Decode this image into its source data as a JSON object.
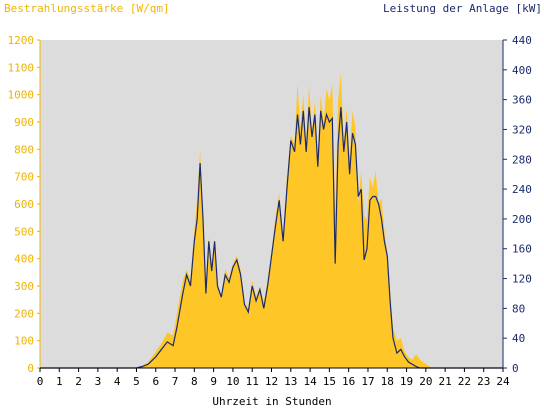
{
  "chart_data": {
    "type": "area",
    "left_axis_label": "Bestrahlungsstärke [W/qm]",
    "right_axis_label": "Leistung der Anlage [kW]",
    "xlabel": "Uhrzeit in Stunden",
    "x_range": [
      0,
      24
    ],
    "x_ticks": [
      "0",
      "1",
      "2",
      "3",
      "4",
      "5",
      "6",
      "7",
      "8",
      "9",
      "10",
      "11",
      "12",
      "13",
      "14",
      "15",
      "16",
      "17",
      "18",
      "19",
      "20",
      "21",
      "22",
      "23",
      "24"
    ],
    "left_ylim": [
      0,
      1200
    ],
    "left_ticks": [
      "0",
      "100",
      "200",
      "300",
      "400",
      "500",
      "600",
      "700",
      "800",
      "900",
      "1000",
      "1100",
      "1200"
    ],
    "right_ylim": [
      0,
      440
    ],
    "right_ticks": [
      "0",
      "40",
      "80",
      "120",
      "160",
      "200",
      "240",
      "280",
      "320",
      "360",
      "400",
      "440"
    ],
    "grid": false,
    "colors": {
      "irradiance": "#ffc628",
      "power": "#1a2a6c",
      "plot_bg": "#dcdcdc",
      "left_axis": "#f0b400"
    },
    "series": [
      {
        "role": "irradiance",
        "axis": "left",
        "x": [
          0,
          5,
          5.3,
          5.6,
          6.0,
          6.3,
          6.6,
          6.9,
          7.1,
          7.4,
          7.6,
          7.8,
          8.0,
          8.15,
          8.3,
          8.45,
          8.6,
          8.75,
          8.9,
          9.05,
          9.2,
          9.4,
          9.6,
          9.8,
          10.0,
          10.2,
          10.4,
          10.6,
          10.8,
          11.0,
          11.2,
          11.4,
          11.6,
          11.8,
          12.0,
          12.2,
          12.4,
          12.6,
          12.8,
          13.0,
          13.2,
          13.35,
          13.5,
          13.65,
          13.8,
          13.95,
          14.1,
          14.25,
          14.4,
          14.55,
          14.7,
          14.85,
          15.0,
          15.15,
          15.3,
          15.45,
          15.6,
          15.75,
          15.9,
          16.05,
          16.2,
          16.35,
          16.5,
          16.65,
          16.8,
          16.95,
          17.1,
          17.25,
          17.4,
          17.55,
          17.7,
          17.85,
          18.0,
          18.15,
          18.3,
          18.5,
          18.7,
          18.9,
          19.1,
          19.3,
          19.5,
          19.7,
          19.9,
          20.1,
          20.3,
          20.5,
          21,
          24
        ],
        "y": [
          0,
          0,
          10,
          20,
          60,
          90,
          130,
          120,
          200,
          320,
          360,
          320,
          500,
          620,
          800,
          550,
          300,
          480,
          380,
          470,
          300,
          260,
          360,
          330,
          380,
          410,
          360,
          240,
          220,
          320,
          260,
          300,
          240,
          320,
          420,
          550,
          640,
          480,
          700,
          850,
          820,
          1040,
          880,
          1000,
          820,
          1040,
          860,
          980,
          760,
          1000,
          900,
          1020,
          980,
          1040,
          560,
          980,
          1080,
          820,
          950,
          760,
          940,
          880,
          600,
          720,
          560,
          540,
          700,
          660,
          720,
          600,
          620,
          500,
          420,
          280,
          150,
          100,
          110,
          60,
          40,
          30,
          50,
          30,
          20,
          10,
          0,
          0,
          0,
          0
        ]
      },
      {
        "role": "power",
        "axis": "right",
        "x": [
          0,
          5,
          5.3,
          5.6,
          6.0,
          6.3,
          6.6,
          6.9,
          7.1,
          7.4,
          7.6,
          7.8,
          8.0,
          8.15,
          8.3,
          8.45,
          8.6,
          8.75,
          8.9,
          9.05,
          9.2,
          9.4,
          9.6,
          9.8,
          10.0,
          10.2,
          10.4,
          10.6,
          10.8,
          11.0,
          11.2,
          11.4,
          11.6,
          11.8,
          12.0,
          12.2,
          12.4,
          12.6,
          12.8,
          13.0,
          13.2,
          13.35,
          13.5,
          13.65,
          13.8,
          13.95,
          14.1,
          14.25,
          14.4,
          14.55,
          14.7,
          14.85,
          15.0,
          15.15,
          15.3,
          15.45,
          15.6,
          15.75,
          15.9,
          16.05,
          16.2,
          16.35,
          16.5,
          16.65,
          16.8,
          16.95,
          17.1,
          17.25,
          17.4,
          17.55,
          17.7,
          17.85,
          18.0,
          18.15,
          18.3,
          18.5,
          18.7,
          18.9,
          19.1,
          19.3,
          19.5,
          19.7,
          19.9,
          20.1,
          20.3,
          20.5,
          21,
          24
        ],
        "y": [
          0,
          0,
          2,
          5,
          15,
          25,
          35,
          30,
          55,
          100,
          125,
          110,
          170,
          200,
          275,
          200,
          100,
          170,
          130,
          170,
          110,
          95,
          125,
          115,
          135,
          145,
          125,
          85,
          75,
          110,
          90,
          105,
          80,
          110,
          150,
          190,
          225,
          170,
          240,
          305,
          290,
          340,
          300,
          345,
          290,
          350,
          310,
          340,
          270,
          345,
          320,
          340,
          330,
          335,
          140,
          300,
          350,
          290,
          330,
          260,
          315,
          300,
          230,
          240,
          145,
          160,
          225,
          230,
          230,
          220,
          200,
          170,
          150,
          90,
          40,
          20,
          25,
          15,
          8,
          5,
          2,
          0,
          0,
          0,
          0,
          0,
          0,
          0
        ]
      }
    ]
  }
}
